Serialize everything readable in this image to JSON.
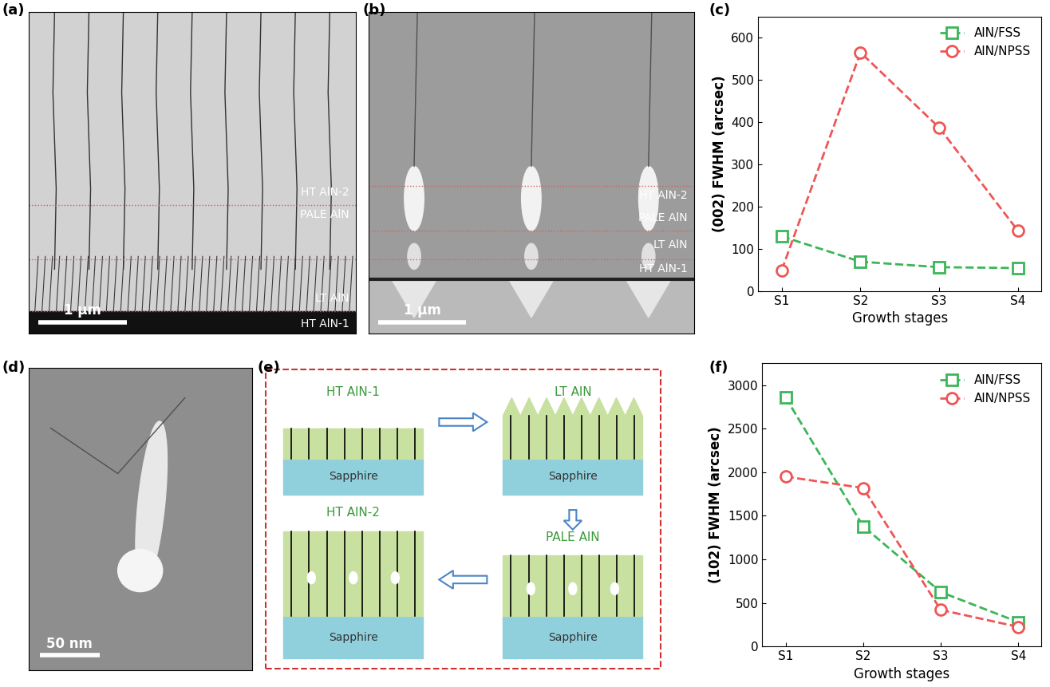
{
  "chart_data": [
    {
      "type": "line",
      "title": "(c)",
      "x_label": "Growth stages",
      "y_label": "(002) FWHM (arcsec)",
      "categories": [
        "S1",
        "S2",
        "S3",
        "S4"
      ],
      "series": [
        {
          "name": "AlN/FSS",
          "color": "#3cb55a",
          "marker": "square",
          "line_style": "dashed",
          "values": [
            130,
            70,
            57,
            55
          ]
        },
        {
          "name": "AlN/NPSS",
          "color": "#f05555",
          "marker": "circle",
          "line_style": "dashed",
          "values": [
            50,
            565,
            387,
            143
          ]
        }
      ],
      "ylim": [
        0,
        650
      ],
      "yticks": [
        0,
        100,
        200,
        300,
        400,
        500,
        600
      ],
      "grid": false,
      "legend": "upper right"
    },
    {
      "type": "line",
      "title": "(f)",
      "x_label": "Growth stages",
      "y_label": "(102) FWHM (arcsec)",
      "categories": [
        "S1",
        "S2",
        "S3",
        "S4"
      ],
      "series": [
        {
          "name": "AlN/FSS",
          "color": "#3cb55a",
          "marker": "square",
          "line_style": "dashed",
          "values": [
            2860,
            1380,
            625,
            280
          ]
        },
        {
          "name": "AlN/NPSS",
          "color": "#f05555",
          "marker": "circle",
          "line_style": "dashed",
          "values": [
            1950,
            1820,
            420,
            225
          ]
        }
      ],
      "ylim": [
        0,
        3250
      ],
      "yticks": [
        0,
        500,
        1000,
        1500,
        2000,
        2500,
        3000
      ],
      "grid": false,
      "legend": "upper right"
    }
  ],
  "images": [
    {
      "panel": "(a)",
      "layers": [
        "HT AlN-2",
        "PALE AlN",
        "LT AlN",
        "HT AlN-1"
      ],
      "scale_bar": "1 μm"
    },
    {
      "panel": "(b)",
      "layers": [
        "HT AlN-2",
        "PALE AlN",
        "LT AlN",
        "HT AlN-1"
      ],
      "scale_bar": "1 μm"
    },
    {
      "panel": "(d)",
      "scale_bar": "50 nm"
    }
  ],
  "diagram": {
    "panel": "(e)",
    "steps": [
      {
        "label": "HT AlN-1",
        "substrate": "Sapphire"
      },
      {
        "label": "LT AlN",
        "substrate": "Sapphire"
      },
      {
        "label": "PALE AlN",
        "substrate": "Sapphire"
      },
      {
        "label": "HT AlN-2",
        "substrate": "Sapphire"
      }
    ]
  }
}
